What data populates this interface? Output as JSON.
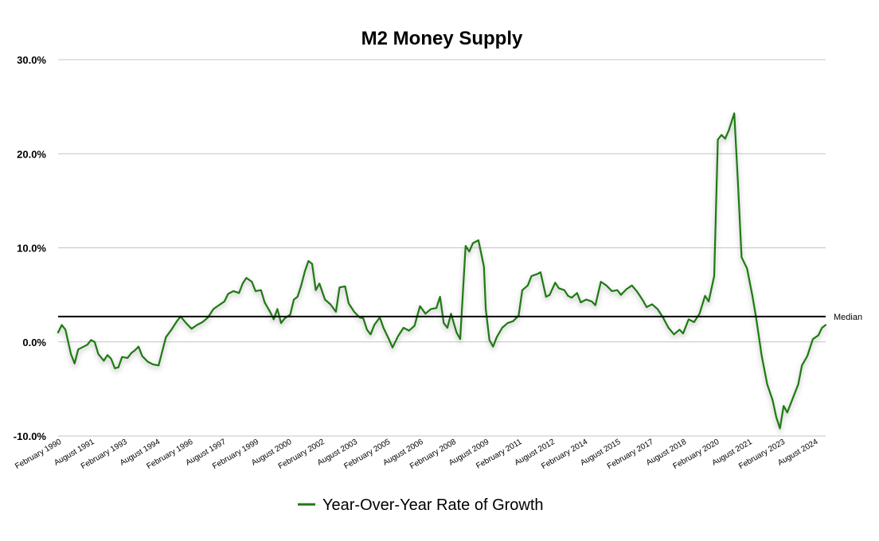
{
  "chart_data": {
    "type": "line",
    "title": "M2 Money Supply",
    "xlabel": "",
    "ylabel": "",
    "ylim": [
      -10,
      30
    ],
    "y_ticks": [
      -10,
      0,
      10,
      20,
      30
    ],
    "y_tick_labels": [
      "-10.0%",
      "0.0%",
      "10.0%",
      "20.0%",
      "30.0%"
    ],
    "x_range": [
      "1989-12",
      "2024-12"
    ],
    "x_tick_labels": [
      {
        "date": "1990-02",
        "label": "February 1990"
      },
      {
        "date": "1991-08",
        "label": "August 1991"
      },
      {
        "date": "1993-02",
        "label": "February 1993"
      },
      {
        "date": "1994-08",
        "label": "August 1994"
      },
      {
        "date": "1996-02",
        "label": "February 1996"
      },
      {
        "date": "1997-08",
        "label": "August 1997"
      },
      {
        "date": "1999-02",
        "label": "February 1999"
      },
      {
        "date": "2000-08",
        "label": "August 2000"
      },
      {
        "date": "2002-02",
        "label": "February 2002"
      },
      {
        "date": "2003-08",
        "label": "August 2003"
      },
      {
        "date": "2005-02",
        "label": "February 2005"
      },
      {
        "date": "2006-08",
        "label": "August 2006"
      },
      {
        "date": "2008-02",
        "label": "February 2008"
      },
      {
        "date": "2009-08",
        "label": "August 2009"
      },
      {
        "date": "2011-02",
        "label": "February 2011"
      },
      {
        "date": "2012-08",
        "label": "August 2012"
      },
      {
        "date": "2014-02",
        "label": "February 2014"
      },
      {
        "date": "2015-08",
        "label": "August 2015"
      },
      {
        "date": "2017-02",
        "label": "February 2017"
      },
      {
        "date": "2018-08",
        "label": "August 2018"
      },
      {
        "date": "2020-02",
        "label": "February 2020"
      },
      {
        "date": "2021-08",
        "label": "August 2021"
      },
      {
        "date": "2023-02",
        "label": "February 2023"
      },
      {
        "date": "2024-08",
        "label": "August 2024"
      }
    ],
    "grid": true,
    "legend_position": "bottom-center",
    "series": [
      {
        "name": "Year-Over-Year Rate of Growth",
        "color": "#1e7a12",
        "points": [
          [
            "1989-12",
            1.0
          ],
          [
            "1990-02",
            1.8
          ],
          [
            "1990-04",
            1.3
          ],
          [
            "1990-07",
            -1.3
          ],
          [
            "1990-09",
            -2.3
          ],
          [
            "1990-11",
            -0.8
          ],
          [
            "1991-01",
            -0.6
          ],
          [
            "1991-04",
            -0.3
          ],
          [
            "1991-06",
            0.2
          ],
          [
            "1991-08",
            0.0
          ],
          [
            "1991-10",
            -1.3
          ],
          [
            "1992-01",
            -2.0
          ],
          [
            "1992-03",
            -1.4
          ],
          [
            "1992-05",
            -1.8
          ],
          [
            "1992-07",
            -2.8
          ],
          [
            "1992-09",
            -2.7
          ],
          [
            "1992-11",
            -1.6
          ],
          [
            "1993-02",
            -1.7
          ],
          [
            "1993-04",
            -1.2
          ],
          [
            "1993-06",
            -0.9
          ],
          [
            "1993-08",
            -0.5
          ],
          [
            "1993-10",
            -1.5
          ],
          [
            "1994-01",
            -2.1
          ],
          [
            "1994-04",
            -2.4
          ],
          [
            "1994-07",
            -2.5
          ],
          [
            "1994-09",
            -1.0
          ],
          [
            "1994-11",
            0.5
          ],
          [
            "1995-02",
            1.3
          ],
          [
            "1995-05",
            2.2
          ],
          [
            "1995-07",
            2.7
          ],
          [
            "1995-10",
            2.0
          ],
          [
            "1996-01",
            1.4
          ],
          [
            "1996-04",
            1.8
          ],
          [
            "1996-07",
            2.1
          ],
          [
            "1996-10",
            2.6
          ],
          [
            "1997-01",
            3.5
          ],
          [
            "1997-04",
            3.9
          ],
          [
            "1997-07",
            4.3
          ],
          [
            "1997-09",
            5.1
          ],
          [
            "1997-12",
            5.4
          ],
          [
            "1998-03",
            5.2
          ],
          [
            "1998-05",
            6.2
          ],
          [
            "1998-07",
            6.8
          ],
          [
            "1998-10",
            6.4
          ],
          [
            "1998-12",
            5.4
          ],
          [
            "1999-03",
            5.5
          ],
          [
            "1999-05",
            4.2
          ],
          [
            "1999-08",
            3.2
          ],
          [
            "1999-10",
            2.4
          ],
          [
            "1999-12",
            3.5
          ],
          [
            "2000-02",
            2.0
          ],
          [
            "2000-04",
            2.5
          ],
          [
            "2000-07",
            2.9
          ],
          [
            "2000-09",
            4.5
          ],
          [
            "2000-11",
            4.8
          ],
          [
            "2001-01",
            6.0
          ],
          [
            "2001-03",
            7.5
          ],
          [
            "2001-05",
            8.6
          ],
          [
            "2001-07",
            8.3
          ],
          [
            "2001-09",
            5.5
          ],
          [
            "2001-11",
            6.2
          ],
          [
            "2002-02",
            4.5
          ],
          [
            "2002-05",
            4.0
          ],
          [
            "2002-08",
            3.2
          ],
          [
            "2002-10",
            5.8
          ],
          [
            "2003-01",
            5.9
          ],
          [
            "2003-03",
            4.1
          ],
          [
            "2003-06",
            3.2
          ],
          [
            "2003-09",
            2.6
          ],
          [
            "2003-11",
            2.5
          ],
          [
            "2004-01",
            1.3
          ],
          [
            "2004-03",
            0.8
          ],
          [
            "2004-05",
            1.8
          ],
          [
            "2004-08",
            2.6
          ],
          [
            "2004-10",
            1.5
          ],
          [
            "2005-01",
            0.3
          ],
          [
            "2005-03",
            -0.6
          ],
          [
            "2005-06",
            0.6
          ],
          [
            "2005-09",
            1.5
          ],
          [
            "2005-12",
            1.2
          ],
          [
            "2006-03",
            1.7
          ],
          [
            "2006-06",
            3.8
          ],
          [
            "2006-09",
            3.0
          ],
          [
            "2006-12",
            3.5
          ],
          [
            "2007-03",
            3.6
          ],
          [
            "2007-05",
            4.8
          ],
          [
            "2007-07",
            2.0
          ],
          [
            "2007-09",
            1.5
          ],
          [
            "2007-11",
            3.0
          ],
          [
            "2008-02",
            1.0
          ],
          [
            "2008-04",
            0.3
          ],
          [
            "2008-07",
            10.2
          ],
          [
            "2008-09",
            9.6
          ],
          [
            "2008-11",
            10.5
          ],
          [
            "2009-02",
            10.8
          ],
          [
            "2009-05",
            8.0
          ],
          [
            "2009-06",
            3.5
          ],
          [
            "2009-08",
            0.2
          ],
          [
            "2009-10",
            -0.5
          ],
          [
            "2009-12",
            0.5
          ],
          [
            "2010-03",
            1.5
          ],
          [
            "2010-06",
            2.0
          ],
          [
            "2010-09",
            2.2
          ],
          [
            "2010-12",
            2.8
          ],
          [
            "2011-02",
            5.5
          ],
          [
            "2011-05",
            6.0
          ],
          [
            "2011-07",
            7.0
          ],
          [
            "2011-10",
            7.2
          ],
          [
            "2011-12",
            7.4
          ],
          [
            "2012-03",
            4.8
          ],
          [
            "2012-05",
            5.0
          ],
          [
            "2012-08",
            6.3
          ],
          [
            "2012-10",
            5.7
          ],
          [
            "2013-01",
            5.5
          ],
          [
            "2013-03",
            4.9
          ],
          [
            "2013-05",
            4.7
          ],
          [
            "2013-08",
            5.2
          ],
          [
            "2013-10",
            4.2
          ],
          [
            "2014-01",
            4.5
          ],
          [
            "2014-04",
            4.3
          ],
          [
            "2014-06",
            3.9
          ],
          [
            "2014-09",
            6.4
          ],
          [
            "2014-12",
            6.0
          ],
          [
            "2015-03",
            5.4
          ],
          [
            "2015-06",
            5.5
          ],
          [
            "2015-08",
            5.0
          ],
          [
            "2015-11",
            5.6
          ],
          [
            "2016-02",
            6.0
          ],
          [
            "2016-05",
            5.3
          ],
          [
            "2016-08",
            4.4
          ],
          [
            "2016-10",
            3.7
          ],
          [
            "2017-01",
            4.0
          ],
          [
            "2017-04",
            3.5
          ],
          [
            "2017-07",
            2.6
          ],
          [
            "2017-10",
            1.5
          ],
          [
            "2018-01",
            0.8
          ],
          [
            "2018-04",
            1.3
          ],
          [
            "2018-06",
            0.9
          ],
          [
            "2018-09",
            2.4
          ],
          [
            "2018-12",
            2.1
          ],
          [
            "2019-03",
            3.0
          ],
          [
            "2019-06",
            4.9
          ],
          [
            "2019-08",
            4.3
          ],
          [
            "2019-11",
            7.0
          ],
          [
            "2020-01",
            21.5
          ],
          [
            "2020-03",
            22.0
          ],
          [
            "2020-05",
            21.6
          ],
          [
            "2020-07",
            22.5
          ],
          [
            "2020-10",
            24.3
          ],
          [
            "2020-12",
            17.0
          ],
          [
            "2021-02",
            9.0
          ],
          [
            "2021-05",
            7.8
          ],
          [
            "2021-08",
            4.8
          ],
          [
            "2021-10",
            2.5
          ],
          [
            "2022-01",
            -1.5
          ],
          [
            "2022-04",
            -4.5
          ],
          [
            "2022-07",
            -6.2
          ],
          [
            "2022-09",
            -8.0
          ],
          [
            "2022-11",
            -9.2
          ],
          [
            "2023-01",
            -6.8
          ],
          [
            "2023-03",
            -7.5
          ],
          [
            "2023-06",
            -6.0
          ],
          [
            "2023-09",
            -4.5
          ],
          [
            "2023-11",
            -2.5
          ],
          [
            "2024-02",
            -1.5
          ],
          [
            "2024-05",
            0.3
          ],
          [
            "2024-08",
            0.7
          ],
          [
            "2024-10",
            1.5
          ],
          [
            "2024-12",
            1.8
          ]
        ]
      }
    ],
    "reference_lines": [
      {
        "label": "Median",
        "value": 2.7,
        "color": "#000000"
      }
    ]
  }
}
